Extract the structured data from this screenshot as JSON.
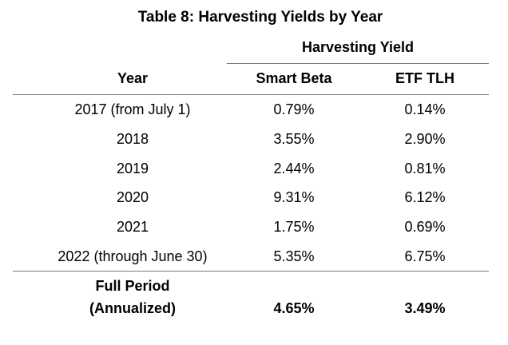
{
  "table": {
    "title": "Table 8: Harvesting Yields by Year",
    "group_header": "Harvesting Yield",
    "columns": {
      "year": "Year",
      "smart_beta": "Smart Beta",
      "etf_tlh": "ETF TLH"
    },
    "rows": [
      {
        "year": "2017 (from July 1)",
        "smart_beta": "0.79%",
        "etf_tlh": "0.14%"
      },
      {
        "year": "2018",
        "smart_beta": "3.55%",
        "etf_tlh": "2.90%"
      },
      {
        "year": "2019",
        "smart_beta": "2.44%",
        "etf_tlh": "0.81%"
      },
      {
        "year": "2020",
        "smart_beta": "9.31%",
        "etf_tlh": "6.12%"
      },
      {
        "year": "2021",
        "smart_beta": "1.75%",
        "etf_tlh": "0.69%"
      },
      {
        "year": "2022 (through June 30)",
        "smart_beta": "5.35%",
        "etf_tlh": "6.75%"
      }
    ],
    "footer": {
      "label_line1": "Full Period",
      "label_line2": "(Annualized)",
      "smart_beta": "4.65%",
      "etf_tlh": "3.49%"
    }
  }
}
